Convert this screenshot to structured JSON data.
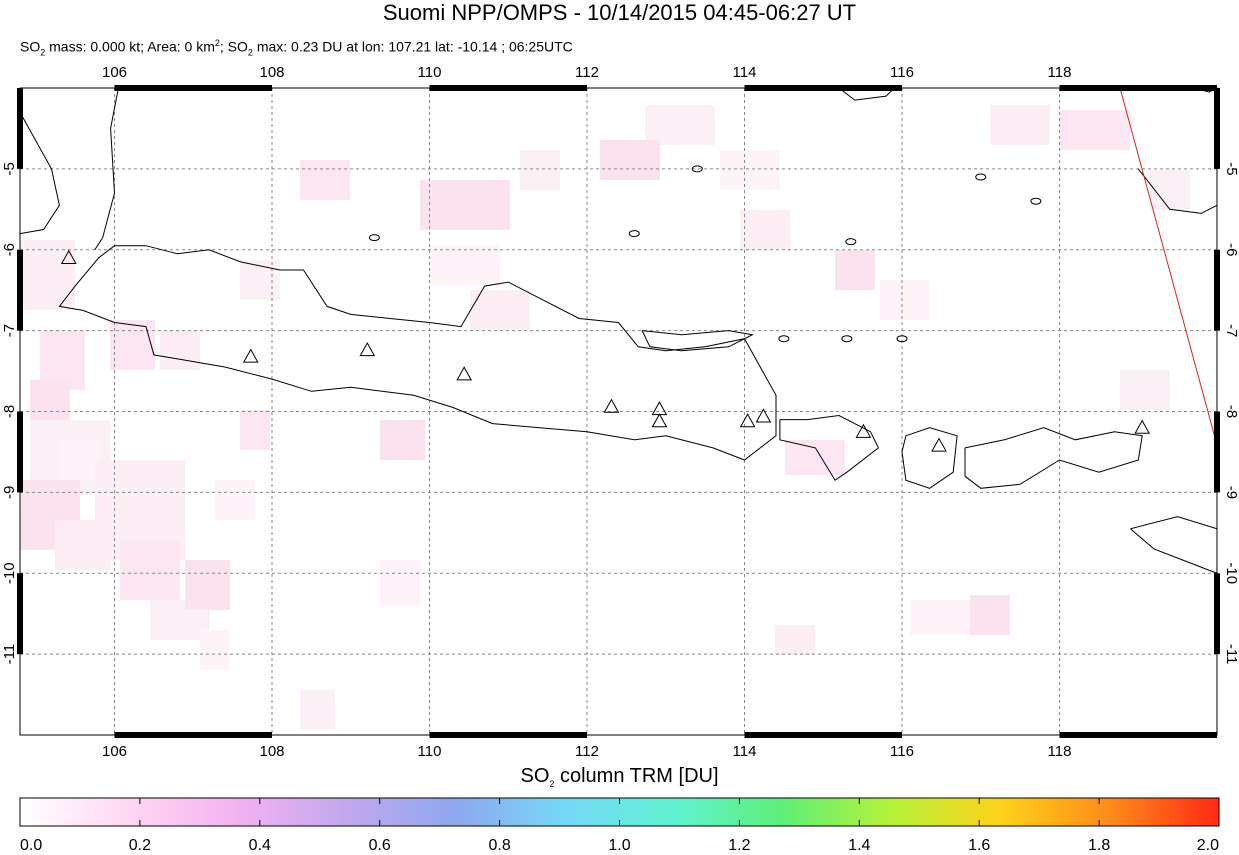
{
  "title": "Suomi NPP/OMPS - 10/14/2015 04:45-06:27 UT",
  "subtitle": {
    "so2_mass_prefix": "SO",
    "sub2": "2",
    "mass_text": " mass: 0.000 kt; Area: 0 km",
    "sup2": "2",
    "sep": "; SO",
    "max_text": " max: 0.23 DU at lon: 107.21 lat: -10.14 ; 06:25UTC"
  },
  "map": {
    "lon_range": [
      104.8,
      120.0
    ],
    "lat_range": [
      -12.0,
      -4.0
    ],
    "lon_ticks": [
      "106",
      "108",
      "110",
      "112",
      "114",
      "116",
      "118"
    ],
    "lat_ticks": [
      "-5",
      "-6",
      "-7",
      "-8",
      "-9",
      "-10",
      "-11"
    ],
    "volcanoes": [
      {
        "lon": 105.42,
        "lat": -6.1
      },
      {
        "lon": 107.73,
        "lat": -7.32
      },
      {
        "lon": 109.21,
        "lat": -7.24
      },
      {
        "lon": 110.44,
        "lat": -7.54
      },
      {
        "lon": 112.31,
        "lat": -7.94
      },
      {
        "lon": 112.92,
        "lat": -7.97
      },
      {
        "lon": 112.92,
        "lat": -8.12
      },
      {
        "lon": 114.04,
        "lat": -8.12
      },
      {
        "lon": 114.24,
        "lat": -8.06
      },
      {
        "lon": 115.51,
        "lat": -8.25
      },
      {
        "lon": 116.47,
        "lat": -8.42
      },
      {
        "lon": 119.05,
        "lat": -8.2
      }
    ],
    "swath_edge_color": "#e02020"
  },
  "colorbar": {
    "title_prefix": "SO",
    "title_sub": "2",
    "title_suffix": " column TRM [DU]",
    "ticks": [
      "0.0",
      "0.2",
      "0.4",
      "0.6",
      "0.8",
      "1.0",
      "1.2",
      "1.4",
      "1.6",
      "1.8",
      "2.0"
    ],
    "range": [
      0.0,
      2.0
    ],
    "colors": [
      "#ffffff",
      "#ffd6f2",
      "#f2b2f2",
      "#c2a8ee",
      "#8ea8ef",
      "#76d8f6",
      "#60f2d2",
      "#5fef78",
      "#b6f23a",
      "#ffd21a",
      "#ff8a1a",
      "#ff2a14"
    ]
  }
}
